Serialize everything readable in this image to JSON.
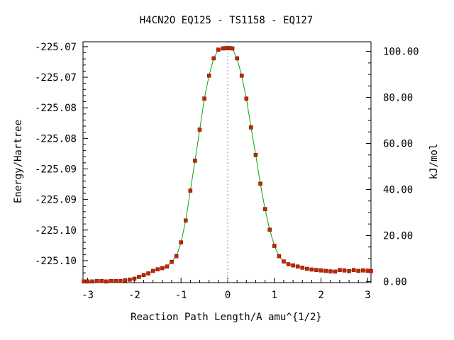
{
  "chart_data": {
    "type": "line",
    "title": "H4CN2O   EQ125 - TS1158 - EQ127",
    "xlabel": "Reaction Path Length/A amu^{1/2}",
    "ylabel": "Energy/Hartree",
    "y2label": "kJ/mol",
    "xlim": [
      -3.1,
      3.07
    ],
    "ylim": [
      -225.1056,
      -225.0662
    ],
    "y2lim": [
      -0.5,
      104.2
    ],
    "grid": false,
    "legend": "none",
    "vertical_marker_x": 0,
    "x_ticks": [
      {
        "value": -3,
        "label": "-3"
      },
      {
        "value": -2,
        "label": "-2"
      },
      {
        "value": -1,
        "label": "-1"
      },
      {
        "value": 0,
        "label": "0"
      },
      {
        "value": 1,
        "label": "1"
      },
      {
        "value": 2,
        "label": "2"
      },
      {
        "value": 3,
        "label": "3"
      }
    ],
    "y_ticks_left": [
      {
        "value": -225.067,
        "label": "-225.07"
      },
      {
        "value": -225.072,
        "label": "-225.07"
      },
      {
        "value": -225.077,
        "label": "-225.08"
      },
      {
        "value": -225.082,
        "label": "-225.08"
      },
      {
        "value": -225.087,
        "label": "-225.09"
      },
      {
        "value": -225.092,
        "label": "-225.09"
      },
      {
        "value": -225.097,
        "label": "-225.10"
      },
      {
        "value": -225.102,
        "label": "-225.10"
      }
    ],
    "y_ticks_right": [
      {
        "value": 0,
        "label": "0.00"
      },
      {
        "value": 20,
        "label": "20.00"
      },
      {
        "value": 40,
        "label": "40.00"
      },
      {
        "value": 60,
        "label": "60.00"
      },
      {
        "value": 80,
        "label": "80.00"
      },
      {
        "value": 100,
        "label": "100.00"
      }
    ],
    "colors": {
      "line": "#00aa00",
      "marker": "#cc2200",
      "axis": "#000000",
      "marker_line": "#999999"
    },
    "series": [
      {
        "y_units": "kJ/mol",
        "x": [
          -3.08,
          -3.0,
          -2.9,
          -2.8,
          -2.7,
          -2.6,
          -2.5,
          -2.4,
          -2.3,
          -2.2,
          -2.1,
          -2.0,
          -1.9,
          -1.8,
          -1.7,
          -1.6,
          -1.5,
          -1.4,
          -1.3,
          -1.2,
          -1.1,
          -1.0,
          -0.9,
          -0.8,
          -0.7,
          -0.6,
          -0.5,
          -0.4,
          -0.3,
          -0.2,
          -0.1,
          -0.05,
          0.0,
          0.05,
          0.1,
          0.2,
          0.3,
          0.4,
          0.5,
          0.6,
          0.7,
          0.8,
          0.9,
          1.0,
          1.1,
          1.2,
          1.3,
          1.4,
          1.5,
          1.6,
          1.7,
          1.8,
          1.9,
          2.0,
          2.1,
          2.2,
          2.3,
          2.4,
          2.5,
          2.6,
          2.7,
          2.8,
          2.9,
          3.0,
          3.07
        ],
        "y": [
          0.0,
          0.0,
          0.0,
          0.2,
          0.2,
          0.0,
          0.2,
          0.2,
          0.2,
          0.5,
          0.8,
          1.2,
          2.0,
          2.8,
          3.5,
          4.6,
          5.3,
          5.8,
          6.5,
          8.5,
          11.0,
          17.0,
          26.5,
          39.5,
          52.5,
          66.0,
          79.5,
          89.5,
          97.0,
          100.8,
          101.3,
          101.4,
          101.4,
          101.4,
          101.3,
          97.0,
          89.5,
          79.5,
          67.0,
          55.0,
          42.5,
          31.5,
          22.5,
          15.5,
          11.0,
          8.7,
          7.5,
          7.0,
          6.5,
          6.0,
          5.5,
          5.2,
          5.0,
          4.8,
          4.6,
          4.4,
          4.3,
          5.0,
          4.8,
          4.5,
          5.0,
          4.6,
          4.8,
          4.7,
          4.5
        ]
      }
    ]
  }
}
